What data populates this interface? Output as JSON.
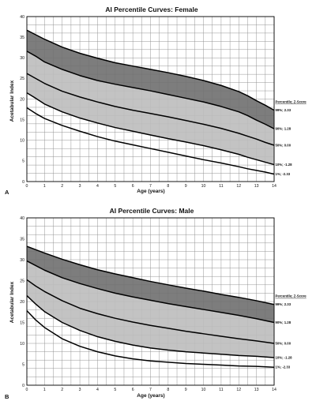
{
  "chart_data": [
    {
      "panel": "A",
      "type": "line",
      "title": "AI Percentile Curves: Female",
      "xlabel": "Age (years)",
      "ylabel": "Acetabular Index",
      "xlim": [
        0,
        14
      ],
      "ylim": [
        0,
        40
      ],
      "x_ticks": [
        "0",
        "1",
        "2",
        "3",
        "4",
        "5",
        "6",
        "7",
        "8",
        "9",
        "10",
        "11",
        "12",
        "13",
        "14"
      ],
      "y_ticks": [
        "0",
        "5",
        "10",
        "15",
        "20",
        "25",
        "30",
        "35",
        "40"
      ],
      "grid": true,
      "legend_header": "Percentile; Z-Score",
      "series": [
        {
          "name": "99%; 2.33",
          "x": [
            0,
            0.5,
            1,
            2,
            3,
            4,
            5,
            6,
            7,
            8,
            9,
            10,
            11,
            12,
            12.5,
            13,
            13.5,
            14
          ],
          "values": [
            36.7,
            35.6,
            34.5,
            32.6,
            31.1,
            29.9,
            28.8,
            28.0,
            27.2,
            26.4,
            25.5,
            24.5,
            23.3,
            21.8,
            20.8,
            19.6,
            18.5,
            17.3
          ]
        },
        {
          "name": "90%; 1.28",
          "x": [
            0,
            0.5,
            1,
            2,
            3,
            4,
            5,
            6,
            7,
            8,
            9,
            10,
            11,
            12,
            12.5,
            13,
            13.5,
            14
          ],
          "values": [
            31.6,
            30.4,
            29.0,
            27.2,
            25.7,
            24.5,
            23.6,
            22.8,
            22.0,
            21.1,
            20.2,
            19.3,
            18.2,
            16.9,
            16.0,
            14.9,
            13.9,
            12.8
          ]
        },
        {
          "name": "50%; 0.00",
          "x": [
            0,
            0.5,
            1,
            2,
            3,
            4,
            5,
            6,
            7,
            8,
            9,
            10,
            11,
            12,
            12.5,
            13,
            13.5,
            14
          ],
          "values": [
            26.2,
            25.0,
            23.8,
            21.9,
            20.5,
            19.3,
            18.2,
            17.3,
            16.5,
            15.7,
            14.8,
            13.9,
            12.9,
            11.7,
            11.0,
            10.3,
            9.5,
            8.8
          ]
        },
        {
          "name": "10%; -1.28",
          "x": [
            0,
            0.5,
            1,
            2,
            3,
            4,
            5,
            6,
            7,
            8,
            9,
            10,
            11,
            12,
            12.5,
            13,
            13.5,
            14
          ],
          "values": [
            21.5,
            20.2,
            18.8,
            16.9,
            15.4,
            14.2,
            13.1,
            12.2,
            11.3,
            10.4,
            9.6,
            8.7,
            7.7,
            6.6,
            5.9,
            5.3,
            4.7,
            4.1
          ]
        },
        {
          "name": "1%; -2.33",
          "x": [
            0,
            0.5,
            1,
            2,
            3,
            4,
            5,
            6,
            7,
            8,
            9,
            10,
            11,
            12,
            12.5,
            13,
            13.5,
            14
          ],
          "values": [
            17.9,
            16.5,
            15.3,
            13.6,
            12.2,
            10.9,
            9.8,
            8.9,
            8.0,
            7.1,
            6.2,
            5.3,
            4.5,
            3.6,
            3.1,
            2.7,
            2.3,
            1.8
          ]
        }
      ]
    },
    {
      "panel": "B",
      "type": "line",
      "title": "AI Percentile Curves: Male",
      "xlabel": "Age (years)",
      "ylabel": "Acetabular Index",
      "xlim": [
        0,
        14
      ],
      "ylim": [
        0,
        40
      ],
      "x_ticks": [
        "0",
        "1",
        "2",
        "3",
        "4",
        "5",
        "6",
        "7",
        "8",
        "9",
        "10",
        "11",
        "12",
        "13",
        "14"
      ],
      "y_ticks": [
        "0",
        "5",
        "10",
        "15",
        "20",
        "25",
        "30",
        "35",
        "40"
      ],
      "grid": true,
      "legend_header": "Percentile; Z-Score",
      "series": [
        {
          "name": "99%; 2.33",
          "x": [
            0,
            0.5,
            1,
            2,
            3,
            4,
            5,
            6,
            7,
            8,
            9,
            10,
            11,
            12,
            13,
            14
          ],
          "values": [
            33.2,
            32.4,
            31.6,
            30.1,
            28.8,
            27.6,
            26.6,
            25.7,
            24.8,
            24.0,
            23.2,
            22.5,
            21.7,
            21.0,
            20.2,
            19.3
          ]
        },
        {
          "name": "90%; 1.28",
          "x": [
            0,
            0.5,
            1,
            2,
            3,
            4,
            5,
            6,
            7,
            8,
            9,
            10,
            11,
            12,
            13,
            14
          ],
          "values": [
            29.7,
            28.6,
            27.5,
            25.7,
            24.3,
            23.1,
            22.0,
            21.1,
            20.3,
            19.5,
            18.8,
            18.1,
            17.4,
            16.7,
            15.9,
            15.0
          ]
        },
        {
          "name": "50%; 0.00",
          "x": [
            0,
            0.5,
            1,
            2,
            3,
            4,
            5,
            6,
            7,
            8,
            9,
            10,
            11,
            12,
            13,
            14
          ],
          "values": [
            25.2,
            23.7,
            22.4,
            20.2,
            18.4,
            17.1,
            16.0,
            15.1,
            14.3,
            13.6,
            12.9,
            12.3,
            11.7,
            11.1,
            10.6,
            10.0
          ]
        },
        {
          "name": "10%; -1.28",
          "x": [
            0,
            0.5,
            1,
            2,
            3,
            4,
            5,
            6,
            7,
            8,
            9,
            10,
            11,
            12,
            13,
            14
          ],
          "values": [
            21.4,
            19.4,
            17.6,
            15.0,
            13.1,
            11.6,
            10.5,
            9.6,
            8.9,
            8.4,
            8.0,
            7.7,
            7.4,
            7.1,
            6.9,
            6.6
          ]
        },
        {
          "name": "1%; -2.33",
          "x": [
            0,
            0.5,
            1,
            2,
            3,
            4,
            5,
            6,
            7,
            8,
            9,
            10,
            11,
            12,
            13,
            14
          ],
          "values": [
            17.8,
            15.6,
            13.8,
            11.1,
            9.3,
            8.0,
            7.0,
            6.3,
            5.8,
            5.5,
            5.2,
            5.0,
            4.8,
            4.6,
            4.5,
            4.3
          ]
        }
      ]
    }
  ],
  "style": {
    "dark_band": "#6f6f6f",
    "light_band": "#bdbdbd",
    "grid_color": "#8a8a8a",
    "line_color": "#000000"
  }
}
